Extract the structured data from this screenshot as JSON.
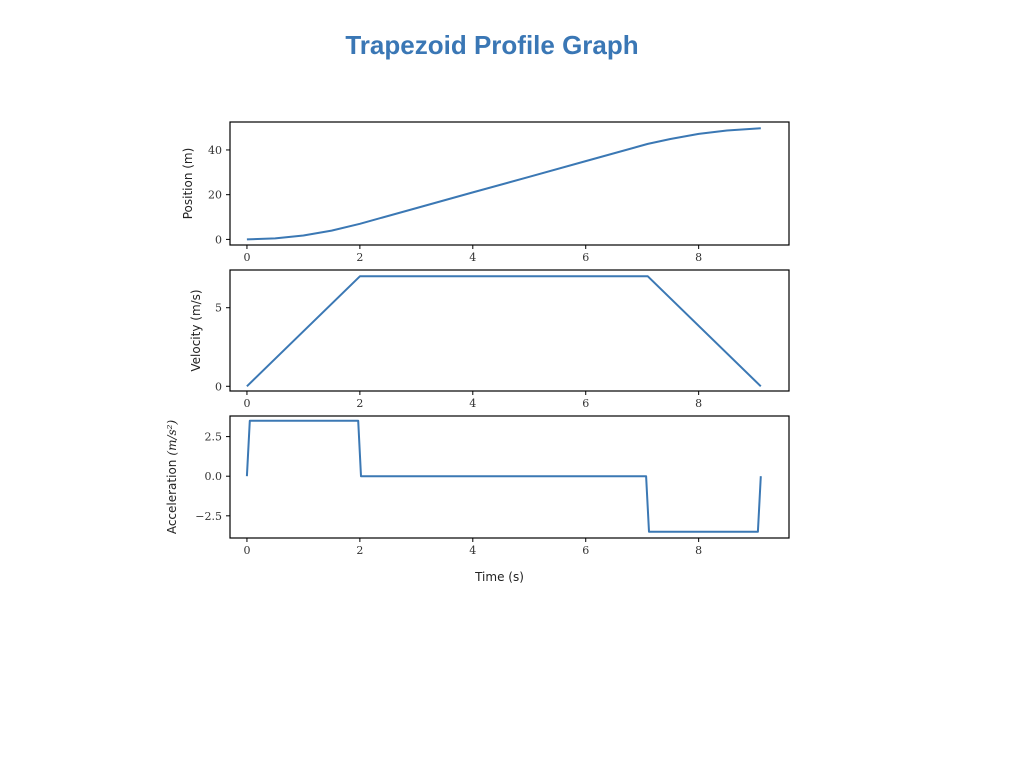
{
  "slide": {
    "title": "Trapezoid Profile Graph"
  },
  "colors": {
    "line": "#3b78b4",
    "title": "#3a77b5",
    "frame": "#000000"
  },
  "chart_data": [
    {
      "type": "line",
      "ylabel": "Position (m)",
      "xlabel": "",
      "xlim": [
        -0.3,
        9.6
      ],
      "ylim": [
        -2.5,
        52.5
      ],
      "xticks": [
        "0",
        "2",
        "4",
        "6",
        "8"
      ],
      "yticks": [
        "0",
        "20",
        "40"
      ],
      "series": [
        {
          "x": [
            0,
            0.5,
            1.0,
            1.5,
            2.0,
            3.0,
            4.0,
            5.0,
            6.0,
            7.1,
            7.5,
            8.0,
            8.5,
            9.1
          ],
          "y": [
            0,
            0.44,
            1.75,
            3.94,
            7.0,
            14.0,
            21.0,
            28.0,
            35.0,
            42.7,
            44.9,
            47.2,
            48.7,
            49.7
          ]
        }
      ]
    },
    {
      "type": "line",
      "ylabel": "Velocity (m/s)",
      "xlabel": "",
      "xlim": [
        -0.3,
        9.6
      ],
      "ylim": [
        -0.3,
        7.4
      ],
      "xticks": [
        "0",
        "2",
        "4",
        "6",
        "8"
      ],
      "yticks": [
        "0",
        "5"
      ],
      "series": [
        {
          "x": [
            0,
            2.0,
            7.1,
            9.1
          ],
          "y": [
            0,
            7.0,
            7.0,
            0
          ]
        }
      ]
    },
    {
      "type": "line",
      "ylabel": "Acceleration",
      "ylabel_math": "(m/s²)",
      "xlabel": "Time (s)",
      "xlim": [
        -0.3,
        9.6
      ],
      "ylim": [
        -3.9,
        3.8
      ],
      "xticks": [
        "0",
        "2",
        "4",
        "6",
        "8"
      ],
      "yticks": [
        "2.5",
        "0.0",
        "−2.5"
      ],
      "series": [
        {
          "x": [
            0,
            0.05,
            1.97,
            2.02,
            7.07,
            7.12,
            9.05,
            9.1
          ],
          "y": [
            0,
            3.5,
            3.5,
            0,
            0,
            -3.5,
            -3.5,
            0
          ]
        }
      ]
    }
  ]
}
